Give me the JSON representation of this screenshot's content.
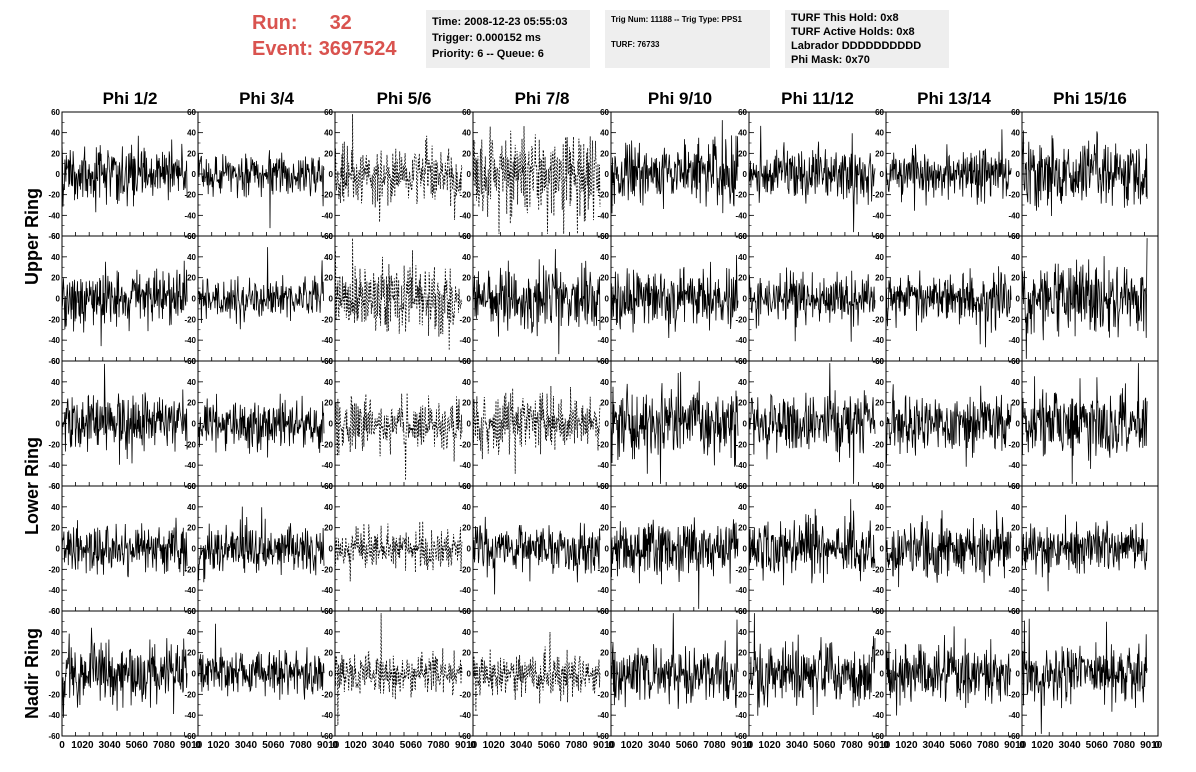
{
  "header": {
    "run_label": "Run:",
    "run_value": "32",
    "event_label": "Event:",
    "event_value": "3697524",
    "time": "Time: 2008-12-23 05:55:03",
    "trigger": "Trigger: 0.000152 ms",
    "priority": "Priority: 6 -- Queue: 6",
    "trig_num": "Trig Num: 11188 -- Trig Type: PPS1",
    "turf": "TURF: 76733",
    "turf_this_hold": "TURF This Hold: 0x8",
    "turf_active_holds": "TURF Active Holds: 0x8",
    "labrador": "Labrador DDDDDDDDDD",
    "phi_mask": "Phi Mask: 0x70"
  },
  "colors": {
    "header_red": "#d9534f",
    "box_bg": "#eeeeee",
    "trace": "#000000"
  },
  "chart_data": {
    "type": "line",
    "columns": [
      "Phi 1/2",
      "Phi 3/4",
      "Phi 5/6",
      "Phi 7/8",
      "Phi 9/10",
      "Phi 11/12",
      "Phi 13/14",
      "Phi 15/16"
    ],
    "row_labels": [
      "Upper Ring",
      "Lower Ring",
      "Nadir Ring"
    ],
    "rows": 5,
    "xlim": [
      0,
      100
    ],
    "ylim": [
      -60,
      60
    ],
    "x_ticks": [
      "0",
      "10",
      "20",
      "30",
      "40",
      "50",
      "60",
      "70",
      "80",
      "90",
      "100"
    ],
    "x_tick_labels_shown": [
      "0",
      "1020",
      "3040",
      "5060",
      "7080",
      "9010"
    ],
    "y_ticks": [
      "-60",
      "-40",
      "-20",
      "0",
      "20",
      "40",
      "60"
    ],
    "dashed_panels": [
      [
        0,
        2
      ],
      [
        0,
        3
      ],
      [
        1,
        2
      ],
      [
        2,
        2
      ],
      [
        2,
        3
      ],
      [
        3,
        2
      ],
      [
        4,
        2
      ],
      [
        4,
        3
      ]
    ],
    "trace_x_range": [
      0,
      92
    ],
    "typical_amplitude": [
      [
        14,
        10,
        14,
        20,
        16,
        12,
        12,
        16
      ],
      [
        14,
        10,
        16,
        14,
        14,
        12,
        12,
        16
      ],
      [
        14,
        12,
        12,
        14,
        16,
        14,
        14,
        16
      ],
      [
        12,
        12,
        10,
        12,
        14,
        14,
        14,
        12
      ],
      [
        16,
        10,
        10,
        10,
        14,
        16,
        14,
        14
      ]
    ]
  }
}
